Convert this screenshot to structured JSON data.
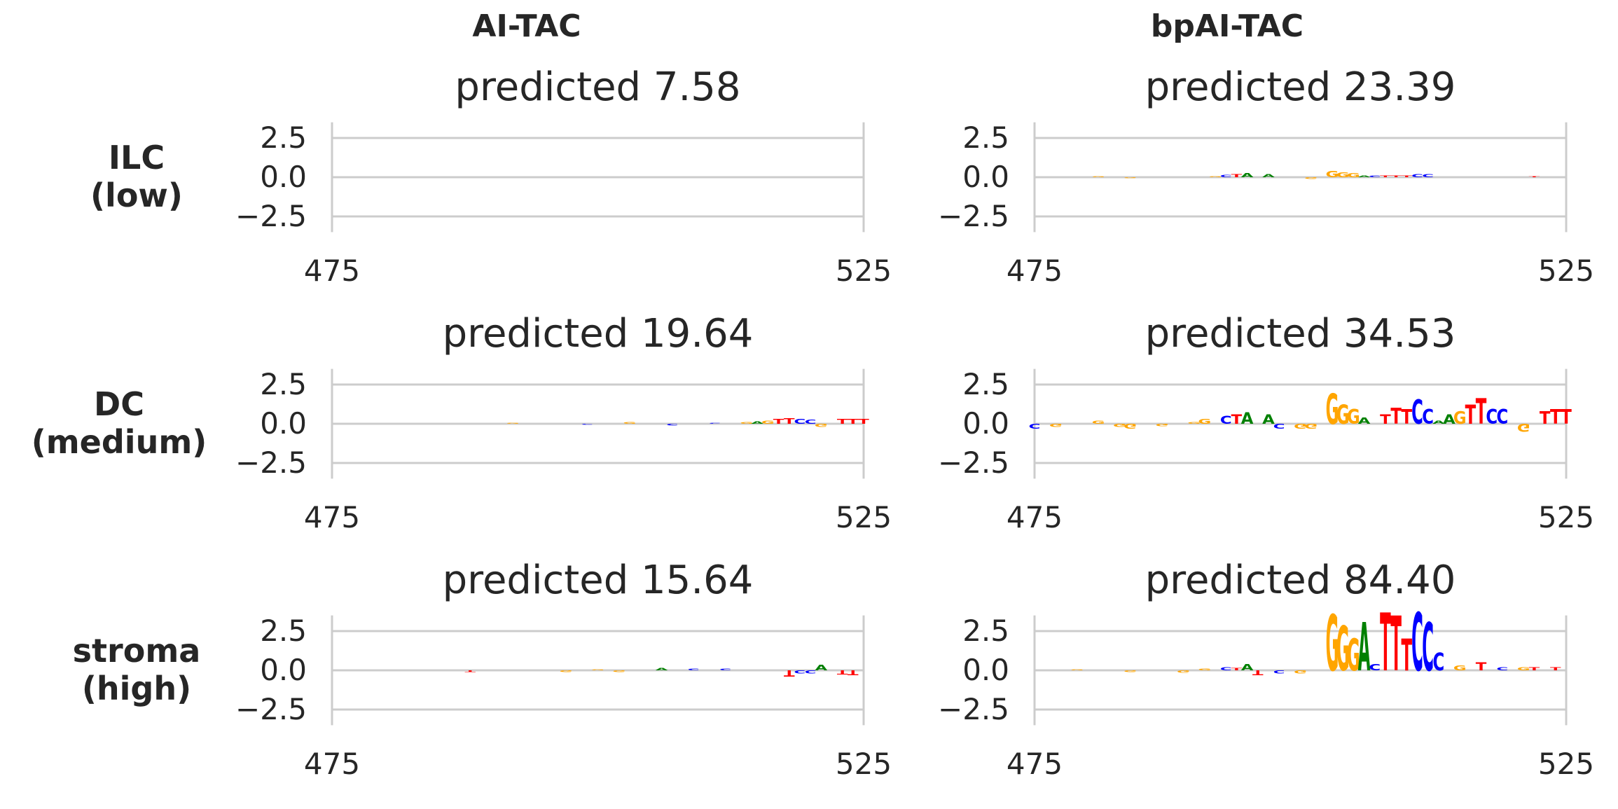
{
  "figure": {
    "column_titles": [
      "AI-TAC",
      "bpAI-TAC"
    ],
    "row_labels": [
      "ILC\n(low)",
      "DC\n(medium)",
      "stroma\n(high)"
    ]
  },
  "colors": {
    "A": "#008000",
    "C": "#0000ff",
    "G": "#ffa500",
    "T": "#ff0000",
    "axis": "#cccccc",
    "text": "#262626"
  },
  "chart_data": [
    {
      "type": "sequence-logo",
      "model": "AI-TAC",
      "condition": "ILC (low)",
      "title": "predicted 7.58",
      "x_range": [
        475,
        525
      ],
      "x_ticks": [
        475,
        525
      ],
      "ylim": [
        -3.5,
        3.5
      ],
      "y_ticks": [
        2.5,
        0.0,
        -2.5
      ],
      "y_tick_labels": [
        "2.5",
        "0.0",
        "−2.5"
      ],
      "grid": true,
      "bases": ""
    },
    {
      "type": "sequence-logo",
      "model": "bpAI-TAC",
      "condition": "ILC (low)",
      "title": "predicted 23.39",
      "x_range": [
        475,
        525
      ],
      "x_ticks": [
        475,
        525
      ],
      "ylim": [
        -3.5,
        3.5
      ],
      "y_ticks": [
        2.5,
        0.0,
        -2.5
      ],
      "y_tick_labels": [
        "2.5",
        "0.0",
        "−2.5"
      ],
      "grid": true,
      "bases": "",
      "letters": [
        {
          "x": 481,
          "base": "G",
          "h": 0.05
        },
        {
          "x": 484,
          "base": "G",
          "h": -0.05
        },
        {
          "x": 492,
          "base": "G",
          "h": 0.05
        },
        {
          "x": 493,
          "base": "C",
          "h": 0.15
        },
        {
          "x": 494,
          "base": "T",
          "h": 0.2
        },
        {
          "x": 495,
          "base": "A",
          "h": 0.25
        },
        {
          "x": 497,
          "base": "A",
          "h": 0.2
        },
        {
          "x": 501,
          "base": "G",
          "h": -0.1
        },
        {
          "x": 503,
          "base": "G",
          "h": 0.4
        },
        {
          "x": 504,
          "base": "G",
          "h": 0.3
        },
        {
          "x": 505,
          "base": "G",
          "h": 0.25
        },
        {
          "x": 506,
          "base": "A",
          "h": 0.1
        },
        {
          "x": 507,
          "base": "C",
          "h": 0.1
        },
        {
          "x": 508,
          "base": "T",
          "h": 0.1
        },
        {
          "x": 509,
          "base": "T",
          "h": 0.1
        },
        {
          "x": 510,
          "base": "T",
          "h": 0.1
        },
        {
          "x": 511,
          "base": "C",
          "h": 0.2
        },
        {
          "x": 512,
          "base": "C",
          "h": 0.2
        },
        {
          "x": 522,
          "base": "T",
          "h": 0.05
        }
      ]
    },
    {
      "type": "sequence-logo",
      "model": "AI-TAC",
      "condition": "DC (medium)",
      "title": "predicted 19.64",
      "x_range": [
        475,
        525
      ],
      "x_ticks": [
        475,
        525
      ],
      "ylim": [
        -3.5,
        3.5
      ],
      "y_ticks": [
        2.5,
        0.0,
        -2.5
      ],
      "y_tick_labels": [
        "2.5",
        "0.0",
        "−2.5"
      ],
      "grid": true,
      "letters": [
        {
          "x": 492,
          "base": "G",
          "h": 0.05
        },
        {
          "x": 499,
          "base": "C",
          "h": -0.05
        },
        {
          "x": 503,
          "base": "G",
          "h": 0.1
        },
        {
          "x": 507,
          "base": "C",
          "h": -0.1
        },
        {
          "x": 511,
          "base": "C",
          "h": 0.05
        },
        {
          "x": 514,
          "base": "G",
          "h": 0.1
        },
        {
          "x": 515,
          "base": "A",
          "h": 0.15
        },
        {
          "x": 516,
          "base": "G",
          "h": 0.2
        },
        {
          "x": 517,
          "base": "T",
          "h": 0.3
        },
        {
          "x": 518,
          "base": "T",
          "h": 0.35
        },
        {
          "x": 519,
          "base": "C",
          "h": 0.3
        },
        {
          "x": 520,
          "base": "C",
          "h": 0.25
        },
        {
          "x": 521,
          "base": "G",
          "h": -0.2
        },
        {
          "x": 523,
          "base": "T",
          "h": 0.3
        },
        {
          "x": 524,
          "base": "T",
          "h": 0.3
        },
        {
          "x": 525,
          "base": "T",
          "h": 0.3
        }
      ]
    },
    {
      "type": "sequence-logo",
      "model": "bpAI-TAC",
      "condition": "DC (medium)",
      "title": "predicted 34.53",
      "x_range": [
        475,
        525
      ],
      "x_ticks": [
        475,
        525
      ],
      "ylim": [
        -3.5,
        3.5
      ],
      "y_ticks": [
        2.5,
        0.0,
        -2.5
      ],
      "y_tick_labels": [
        "2.5",
        "0.0",
        "−2.5"
      ],
      "grid": true,
      "letters": [
        {
          "x": 475,
          "base": "C",
          "h": -0.3
        },
        {
          "x": 477,
          "base": "G",
          "h": -0.2
        },
        {
          "x": 481,
          "base": "G",
          "h": 0.2
        },
        {
          "x": 483,
          "base": "G",
          "h": -0.2
        },
        {
          "x": 484,
          "base": "G",
          "h": -0.3
        },
        {
          "x": 487,
          "base": "G",
          "h": -0.15
        },
        {
          "x": 490,
          "base": "G",
          "h": 0.1
        },
        {
          "x": 491,
          "base": "G",
          "h": 0.3
        },
        {
          "x": 493,
          "base": "C",
          "h": 0.5
        },
        {
          "x": 494,
          "base": "T",
          "h": 0.6
        },
        {
          "x": 495,
          "base": "A",
          "h": 0.7
        },
        {
          "x": 497,
          "base": "A",
          "h": 0.6
        },
        {
          "x": 498,
          "base": "C",
          "h": -0.3
        },
        {
          "x": 500,
          "base": "G",
          "h": -0.3
        },
        {
          "x": 501,
          "base": "G",
          "h": -0.3
        },
        {
          "x": 503,
          "base": "G",
          "h": 1.9
        },
        {
          "x": 504,
          "base": "G",
          "h": 1.2
        },
        {
          "x": 505,
          "base": "G",
          "h": 0.9
        },
        {
          "x": 506,
          "base": "A",
          "h": 0.4
        },
        {
          "x": 508,
          "base": "T",
          "h": 0.6
        },
        {
          "x": 509,
          "base": "T",
          "h": 1.0
        },
        {
          "x": 510,
          "base": "T",
          "h": 0.9
        },
        {
          "x": 511,
          "base": "C",
          "h": 1.5
        },
        {
          "x": 512,
          "base": "C",
          "h": 0.9
        },
        {
          "x": 513,
          "base": "A",
          "h": 0.2
        },
        {
          "x": 514,
          "base": "A",
          "h": 0.6
        },
        {
          "x": 515,
          "base": "G",
          "h": 0.8
        },
        {
          "x": 516,
          "base": "T",
          "h": 1.2
        },
        {
          "x": 517,
          "base": "T",
          "h": 1.6
        },
        {
          "x": 518,
          "base": "C",
          "h": 0.9
        },
        {
          "x": 519,
          "base": "C",
          "h": 0.9
        },
        {
          "x": 521,
          "base": "G",
          "h": -0.5
        },
        {
          "x": 523,
          "base": "T",
          "h": 0.8
        },
        {
          "x": 524,
          "base": "T",
          "h": 0.9
        },
        {
          "x": 525,
          "base": "T",
          "h": 0.9
        }
      ]
    },
    {
      "type": "sequence-logo",
      "model": "AI-TAC",
      "condition": "stroma (high)",
      "title": "predicted 15.64",
      "x_range": [
        475,
        525
      ],
      "x_ticks": [
        475,
        525
      ],
      "ylim": [
        -3.5,
        3.5
      ],
      "y_ticks": [
        2.5,
        0.0,
        -2.5
      ],
      "y_tick_labels": [
        "2.5",
        "0.0",
        "−2.5"
      ],
      "grid": true,
      "letters": [
        {
          "x": 488,
          "base": "T",
          "h": -0.1
        },
        {
          "x": 497,
          "base": "G",
          "h": -0.1
        },
        {
          "x": 500,
          "base": "G",
          "h": 0.05
        },
        {
          "x": 502,
          "base": "G",
          "h": -0.1
        },
        {
          "x": 506,
          "base": "A",
          "h": 0.15
        },
        {
          "x": 509,
          "base": "C",
          "h": 0.1
        },
        {
          "x": 512,
          "base": "C",
          "h": 0.1
        },
        {
          "x": 518,
          "base": "T",
          "h": -0.4
        },
        {
          "x": 519,
          "base": "C",
          "h": -0.2
        },
        {
          "x": 520,
          "base": "C",
          "h": -0.2
        },
        {
          "x": 521,
          "base": "A",
          "h": 0.35
        },
        {
          "x": 523,
          "base": "T",
          "h": -0.25
        },
        {
          "x": 524,
          "base": "T",
          "h": -0.3
        }
      ]
    },
    {
      "type": "sequence-logo",
      "model": "bpAI-TAC",
      "condition": "stroma (high)",
      "title": "predicted 84.40",
      "x_range": [
        475,
        525
      ],
      "x_ticks": [
        475,
        525
      ],
      "ylim": [
        -3.5,
        3.5
      ],
      "y_ticks": [
        2.5,
        0.0,
        -2.5
      ],
      "y_tick_labels": [
        "2.5",
        "0.0",
        "−2.5"
      ],
      "grid": true,
      "letters": [
        {
          "x": 479,
          "base": "G",
          "h": 0.05
        },
        {
          "x": 484,
          "base": "G",
          "h": -0.1
        },
        {
          "x": 489,
          "base": "G",
          "h": -0.15
        },
        {
          "x": 491,
          "base": "G",
          "h": 0.1
        },
        {
          "x": 493,
          "base": "C",
          "h": 0.2
        },
        {
          "x": 494,
          "base": "T",
          "h": 0.15
        },
        {
          "x": 495,
          "base": "A",
          "h": 0.4
        },
        {
          "x": 496,
          "base": "T",
          "h": -0.3
        },
        {
          "x": 498,
          "base": "C",
          "h": -0.2
        },
        {
          "x": 500,
          "base": "G",
          "h": -0.2
        },
        {
          "x": 503,
          "base": "G",
          "h": 3.5
        },
        {
          "x": 504,
          "base": "G",
          "h": 2.8
        },
        {
          "x": 505,
          "base": "G",
          "h": 2.0
        },
        {
          "x": 506,
          "base": "A",
          "h": 3.0
        },
        {
          "x": 507,
          "base": "C",
          "h": 0.4
        },
        {
          "x": 508,
          "base": "T",
          "h": 3.6
        },
        {
          "x": 509,
          "base": "T",
          "h": 3.4
        },
        {
          "x": 510,
          "base": "T",
          "h": 2.0
        },
        {
          "x": 511,
          "base": "C",
          "h": 3.6
        },
        {
          "x": 512,
          "base": "C",
          "h": 3.0
        },
        {
          "x": 513,
          "base": "C",
          "h": 1.1
        },
        {
          "x": 515,
          "base": "G",
          "h": 0.3
        },
        {
          "x": 517,
          "base": "T",
          "h": 0.5
        },
        {
          "x": 519,
          "base": "C",
          "h": 0.2
        },
        {
          "x": 521,
          "base": "G",
          "h": 0.2
        },
        {
          "x": 522,
          "base": "T",
          "h": 0.2
        },
        {
          "x": 524,
          "base": "T",
          "h": 0.2
        }
      ]
    }
  ]
}
